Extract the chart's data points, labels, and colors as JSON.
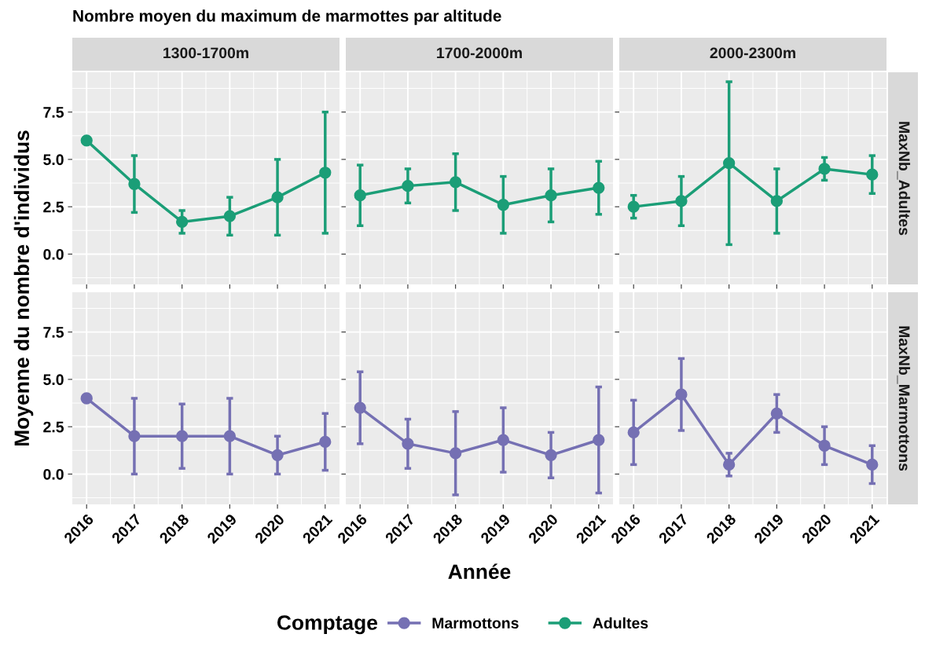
{
  "chart_data": [
    {
      "type": "line",
      "title": "Nombre moyen du maximum de marmottes par altitude",
      "subtitle": "1300-1700m",
      "ylabel": "Moyenne du nombre d'individus",
      "categories": [
        "2016",
        "2017",
        "2018",
        "2019",
        "2020",
        "2021"
      ],
      "series": [
        {
          "name": "Adultes",
          "color": "#1b9e77",
          "values": [
            6.0,
            3.7,
            1.7,
            2.0,
            3.0,
            4.3
          ],
          "errors": [
            null,
            [
              2.2,
              5.2
            ],
            [
              1.1,
              2.3
            ],
            [
              1.0,
              3.0
            ],
            [
              1.0,
              5.0
            ],
            [
              1.1,
              7.5
            ]
          ]
        }
      ],
      "ylim": [
        -1.6,
        9.6
      ],
      "yticks": [
        {
          "value": 0,
          "label": "0.0"
        },
        {
          "value": 2.5,
          "label": "2.5"
        },
        {
          "value": 5,
          "label": "5.0"
        },
        {
          "value": 7.5,
          "label": "7.5"
        }
      ],
      "grid": true,
      "marker": "circle",
      "tick_labels": "y",
      "legend_title": "Comptage",
      "legend": "bottom"
    },
    {
      "type": "line",
      "subtitle": "1700-2000m",
      "categories": [
        "2016",
        "2017",
        "2018",
        "2019",
        "2020",
        "2021"
      ],
      "series": [
        {
          "color": "#1b9e77",
          "values": [
            3.1,
            3.6,
            3.8,
            2.6,
            3.1,
            3.5
          ],
          "errors": [
            [
              1.5,
              4.7
            ],
            [
              2.7,
              4.5
            ],
            [
              2.3,
              5.3
            ],
            [
              1.1,
              4.1
            ],
            [
              1.7,
              4.5
            ],
            [
              2.1,
              4.9
            ]
          ]
        }
      ],
      "ylim": [
        -1.6,
        9.6
      ],
      "yticks": [
        {
          "value": 0,
          "label": null
        },
        {
          "value": 2.5,
          "label": null
        },
        {
          "value": 5,
          "label": null
        },
        {
          "value": 7.5,
          "label": null
        }
      ],
      "grid": true,
      "marker": "circle",
      "tick_labels": false
    },
    {
      "type": "line",
      "subtitle": "2000-2300m",
      "y2label": "MaxNb_Adultes",
      "categories": [
        "2016",
        "2017",
        "2018",
        "2019",
        "2020",
        "2021"
      ],
      "series": [
        {
          "color": "#1b9e77",
          "values": [
            2.5,
            2.8,
            4.8,
            2.8,
            4.5,
            4.2
          ],
          "errors": [
            [
              1.9,
              3.1
            ],
            [
              1.5,
              4.1
            ],
            [
              0.5,
              9.1
            ],
            [
              1.1,
              4.5
            ],
            [
              3.9,
              5.1
            ],
            [
              3.2,
              5.2
            ]
          ]
        }
      ],
      "ylim": [
        -1.6,
        9.6
      ],
      "yticks": [
        {
          "value": 0,
          "label": null
        },
        {
          "value": 2.5,
          "label": null
        },
        {
          "value": 5,
          "label": null
        },
        {
          "value": 7.5,
          "label": null
        }
      ],
      "grid": true,
      "marker": "circle",
      "tick_labels": false
    },
    {
      "type": "line",
      "categories": [
        "2016",
        "2017",
        "2018",
        "2019",
        "2020",
        "2021"
      ],
      "series": [
        {
          "name": "Marmottons",
          "color": "#7570b3",
          "values": [
            4.0,
            2.0,
            2.0,
            2.0,
            1.0,
            1.7
          ],
          "errors": [
            null,
            [
              0.0,
              4.0
            ],
            [
              0.3,
              3.7
            ],
            [
              0.0,
              4.0
            ],
            [
              0.0,
              2.0
            ],
            [
              0.2,
              3.2
            ]
          ]
        }
      ],
      "ylim": [
        -1.6,
        9.6
      ],
      "yticks": [
        {
          "value": 0,
          "label": "0.0"
        },
        {
          "value": 2.5,
          "label": "2.5"
        },
        {
          "value": 5,
          "label": "5.0"
        },
        {
          "value": 7.5,
          "label": "7.5"
        }
      ],
      "grid": true,
      "marker": "circle"
    },
    {
      "type": "line",
      "xlabel": "Année",
      "categories": [
        "2016",
        "2017",
        "2018",
        "2019",
        "2020",
        "2021"
      ],
      "series": [
        {
          "color": "#7570b3",
          "values": [
            3.5,
            1.6,
            1.1,
            1.8,
            1.0,
            1.8
          ],
          "errors": [
            [
              1.6,
              5.4
            ],
            [
              0.3,
              2.9
            ],
            [
              -1.1,
              3.3
            ],
            [
              0.1,
              3.5
            ],
            [
              -0.2,
              2.2
            ],
            [
              -1.0,
              4.6
            ]
          ]
        }
      ],
      "ylim": [
        -1.6,
        9.6
      ],
      "yticks": [
        {
          "value": 0,
          "label": null
        },
        {
          "value": 2.5,
          "label": null
        },
        {
          "value": 5,
          "label": null
        },
        {
          "value": 7.5,
          "label": null
        }
      ],
      "grid": true,
      "marker": "circle",
      "tick_labels": "x"
    },
    {
      "type": "line",
      "y2label": "MaxNb_Marmottons",
      "categories": [
        "2016",
        "2017",
        "2018",
        "2019",
        "2020",
        "2021"
      ],
      "series": [
        {
          "color": "#7570b3",
          "values": [
            2.2,
            4.2,
            0.5,
            3.2,
            1.5,
            0.5
          ],
          "errors": [
            [
              0.5,
              3.9
            ],
            [
              2.3,
              6.1
            ],
            [
              -0.1,
              1.1
            ],
            [
              2.2,
              4.2
            ],
            [
              0.5,
              2.5
            ],
            [
              -0.5,
              1.5
            ]
          ]
        }
      ],
      "ylim": [
        -1.6,
        9.6
      ],
      "yticks": [
        {
          "value": 0,
          "label": null
        },
        {
          "value": 2.5,
          "label": null
        },
        {
          "value": 5,
          "label": null
        },
        {
          "value": 7.5,
          "label": null
        }
      ],
      "grid": true,
      "marker": "circle",
      "tick_labels": "x"
    }
  ]
}
